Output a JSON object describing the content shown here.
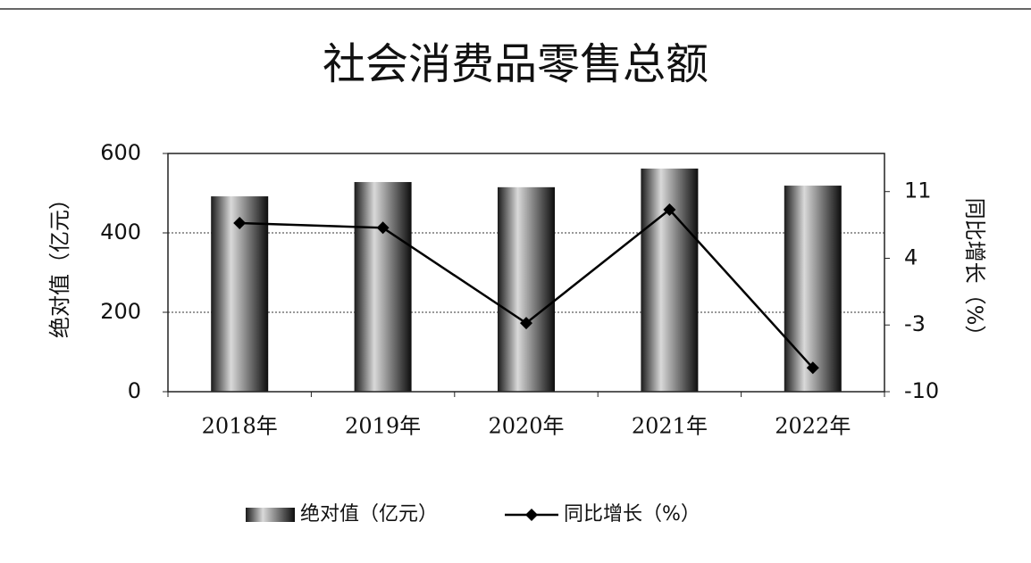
{
  "chart_data": {
    "type": "bar-line",
    "title": "社会消费品零售总额",
    "categories": [
      "2018年",
      "2019年",
      "2020年",
      "2021年",
      "2022年"
    ],
    "series": [
      {
        "name": "绝对值（亿元）",
        "type": "bar",
        "color": "#d9d9d9",
        "values": [
          492,
          528,
          515,
          562,
          519
        ]
      },
      {
        "name": "同比增长（%）",
        "type": "line",
        "axis": "y2",
        "color": "#000000",
        "values": [
          7.7,
          7.2,
          -2.8,
          9.1,
          -7.5
        ]
      }
    ],
    "ylabel": "绝对值（亿元）",
    "y2label": "同比增长（%）",
    "ylim": [
      0,
      600
    ],
    "yticks": [
      0,
      200,
      400,
      600
    ],
    "y2lim": [
      -10,
      15
    ],
    "y2ticks": [
      -10,
      -3,
      4,
      11
    ],
    "grid": true,
    "legend": "bottom"
  }
}
